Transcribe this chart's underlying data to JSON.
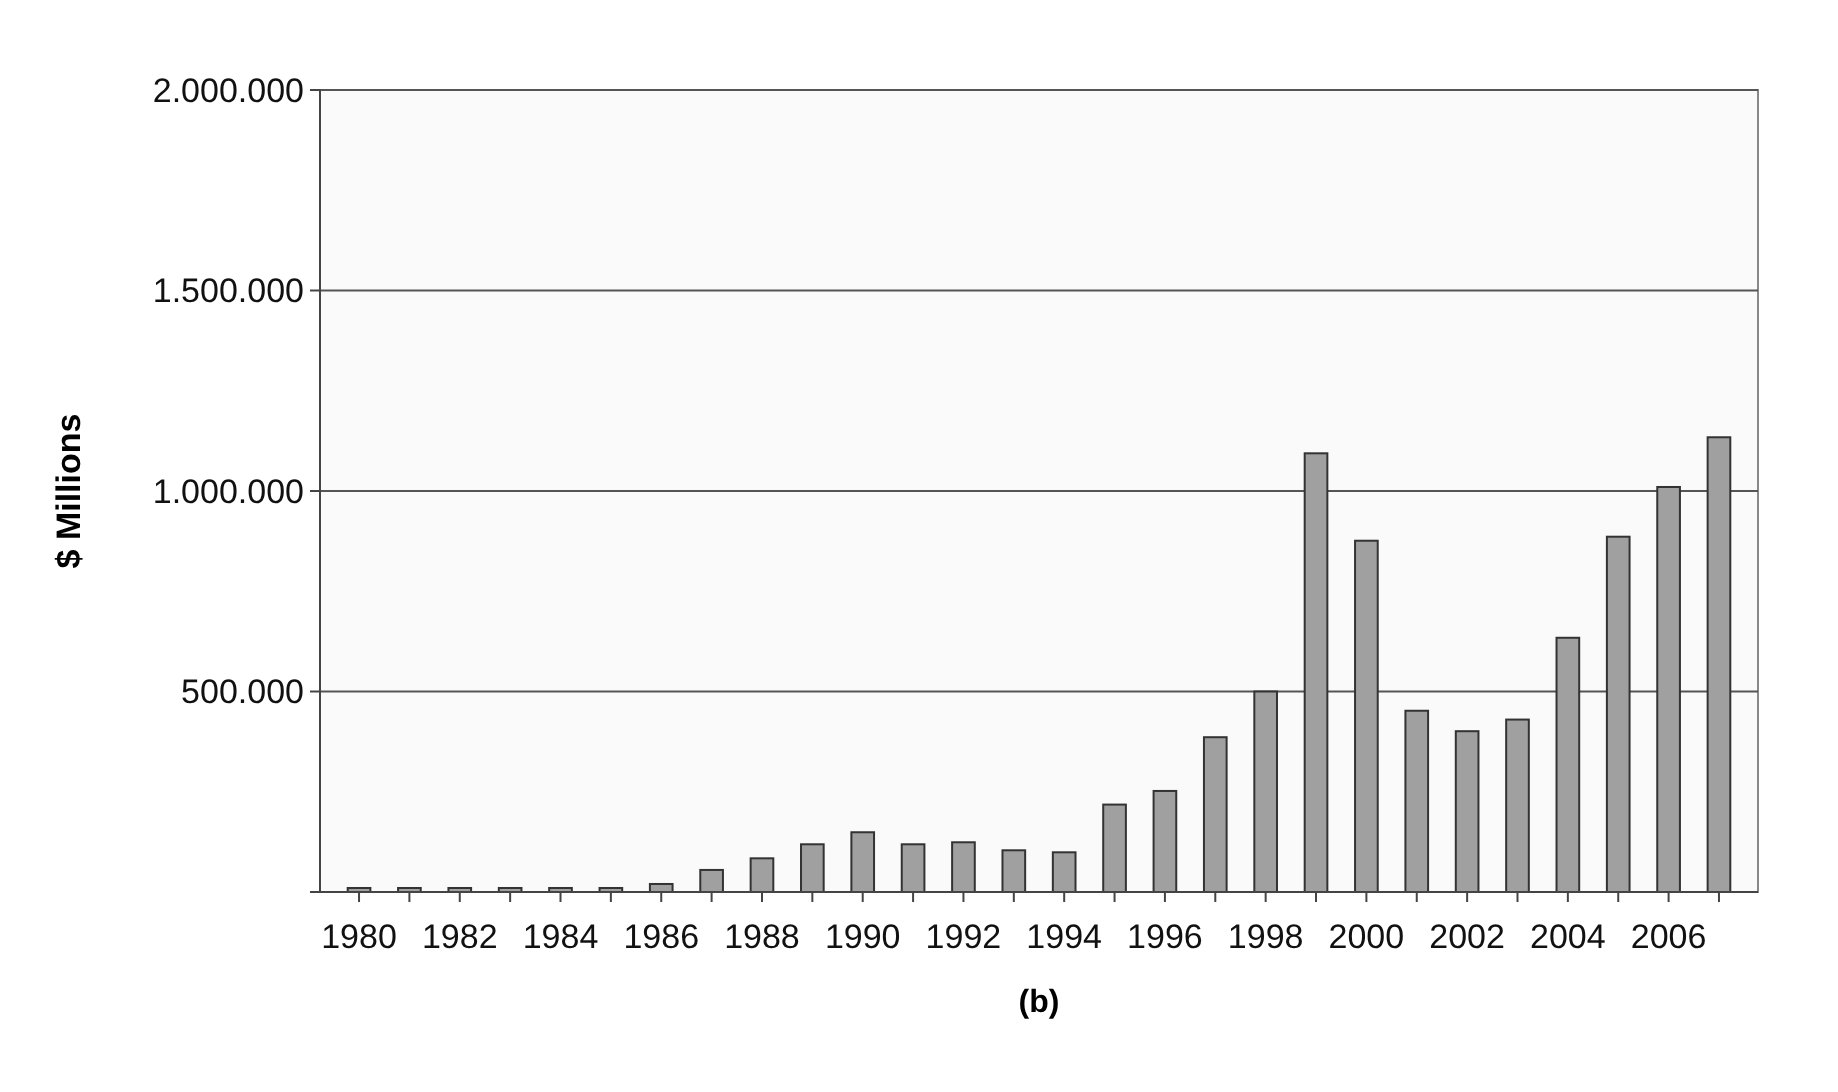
{
  "chart_data": {
    "type": "bar",
    "ylabel": "$ Millions",
    "annotations": [
      "(b)"
    ],
    "categories": [
      "1980",
      null,
      "1982",
      null,
      "1984",
      null,
      "1986",
      null,
      "1988",
      null,
      "1990",
      null,
      "1992",
      null,
      "1994",
      null,
      "1996",
      null,
      "1998",
      null,
      "2000",
      null,
      "2002",
      null,
      "2004",
      null,
      "2006",
      null
    ],
    "values": [
      10000,
      10000,
      10000,
      10000,
      10000,
      10000,
      20000,
      55000,
      84000,
      119000,
      149000,
      119000,
      124000,
      104000,
      99000,
      218000,
      252000,
      386000,
      500000,
      1094000,
      876000,
      452000,
      401000,
      430000,
      634000,
      886000,
      1010000,
      1134000
    ],
    "color": "#a0a0a0",
    "ylim": [
      0,
      2000000
    ],
    "yticks": [
      {
        "value": 0,
        "label": null
      },
      {
        "value": 500000,
        "label": "500.000"
      },
      {
        "value": 1000000,
        "label": "1.000.000"
      },
      {
        "value": 1500000,
        "label": "1.500.000"
      },
      {
        "value": 2000000,
        "label": "2.000.000"
      }
    ],
    "grid": "y"
  }
}
